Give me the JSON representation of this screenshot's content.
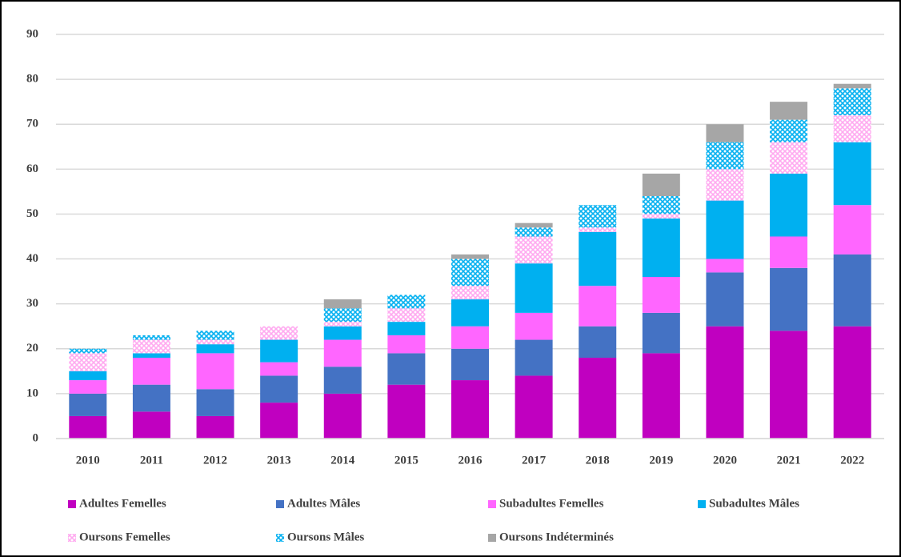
{
  "chart_data": {
    "type": "stacked_bar",
    "categories": [
      "2010",
      "2011",
      "2012",
      "2013",
      "2014",
      "2015",
      "2016",
      "2017",
      "2018",
      "2019",
      "2020",
      "2021",
      "2022"
    ],
    "series": [
      {
        "name": "Adultes Femelles",
        "color": "#c000c0",
        "values": [
          5,
          6,
          5,
          8,
          10,
          12,
          13,
          14,
          18,
          19,
          25,
          24,
          25
        ]
      },
      {
        "name": "Adultes Mâles",
        "color": "#4472c4",
        "values": [
          5,
          6,
          6,
          6,
          6,
          7,
          7,
          8,
          7,
          9,
          12,
          14,
          16
        ]
      },
      {
        "name": "Subadultes Femelles",
        "color": "#ff66ff",
        "values": [
          3,
          6,
          8,
          3,
          6,
          4,
          5,
          6,
          9,
          8,
          3,
          7,
          11
        ]
      },
      {
        "name": "Subadultes Mâles",
        "color": "#00b0f0",
        "values": [
          2,
          1,
          2,
          5,
          3,
          3,
          6,
          11,
          12,
          13,
          13,
          14,
          14
        ]
      },
      {
        "name": "Oursons Femelles",
        "color": "#ffaaf0",
        "fill_style": "patterned",
        "values": [
          4,
          3,
          1,
          3,
          1,
          3,
          3,
          6,
          1,
          1,
          7,
          7,
          6
        ]
      },
      {
        "name": "Oursons Mâles",
        "color": "#00b0f0",
        "fill_style": "patterned",
        "values": [
          1,
          1,
          2,
          0,
          3,
          3,
          6,
          2,
          5,
          4,
          6,
          5,
          6
        ]
      },
      {
        "name": "Oursons Indéterminés",
        "color": "#a6a6a6",
        "values": [
          0,
          0,
          0,
          0,
          2,
          0,
          1,
          1,
          0,
          5,
          4,
          4,
          1
        ]
      }
    ],
    "ylim": [
      0,
      90
    ],
    "yticks": [
      0,
      10,
      20,
      30,
      40,
      50,
      60,
      70,
      80,
      90
    ],
    "grid": true
  }
}
